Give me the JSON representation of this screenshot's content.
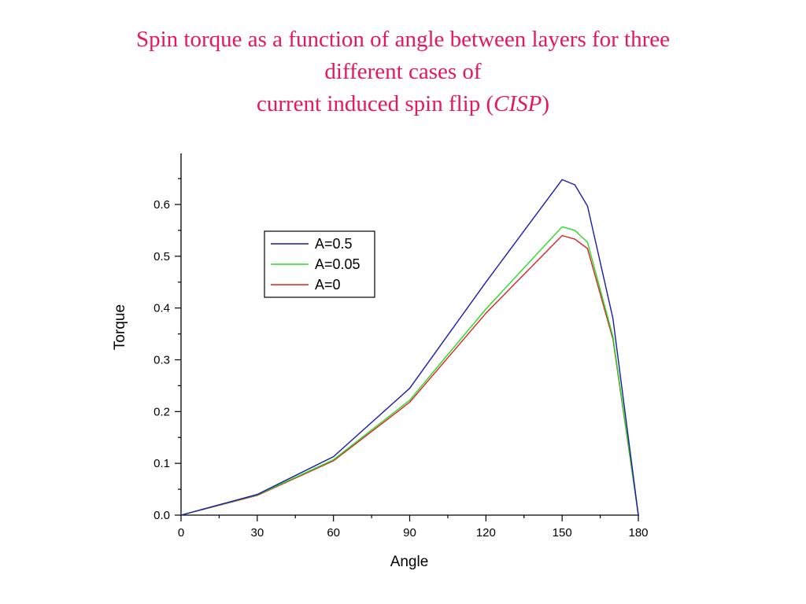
{
  "chart_data": {
    "type": "line",
    "title_lines": [
      "Spin torque as a function of angle between layers for three",
      "different cases of",
      "current induced  spin flip ("
    ],
    "title_acronym": "CISP",
    "title_suffix": ")",
    "xlabel": "Angle",
    "ylabel": "Torque",
    "xlim": [
      0,
      180
    ],
    "ylim": [
      0,
      0.7
    ],
    "xticks": [
      0,
      30,
      60,
      90,
      120,
      150,
      180
    ],
    "yticks": [
      0.0,
      0.1,
      0.2,
      0.3,
      0.4,
      0.5,
      0.6
    ],
    "ytick_labels": [
      "0.0",
      "0.1",
      "0.2",
      "0.3",
      "0.4",
      "0.5",
      "0.6"
    ],
    "grid": false,
    "legend_position": "upper-middle",
    "series": [
      {
        "name": "A=0.5",
        "color": "#1a1aa8",
        "x": [
          0,
          30,
          60,
          90,
          120,
          150,
          155,
          160,
          170,
          180
        ],
        "y": [
          0,
          0.04,
          0.113,
          0.245,
          0.45,
          0.648,
          0.638,
          0.597,
          0.38,
          0
        ]
      },
      {
        "name": "A=0.05",
        "color": "#22dd22",
        "x": [
          0,
          30,
          60,
          90,
          120,
          150,
          155,
          160,
          170,
          180
        ],
        "y": [
          0,
          0.039,
          0.107,
          0.222,
          0.398,
          0.557,
          0.55,
          0.527,
          0.345,
          0
        ]
      },
      {
        "name": "A=0",
        "color": "#dd2222",
        "x": [
          0,
          30,
          60,
          90,
          120,
          150,
          155,
          160,
          170,
          180
        ],
        "y": [
          0,
          0.038,
          0.105,
          0.218,
          0.39,
          0.54,
          0.533,
          0.515,
          0.34,
          0
        ]
      }
    ]
  }
}
